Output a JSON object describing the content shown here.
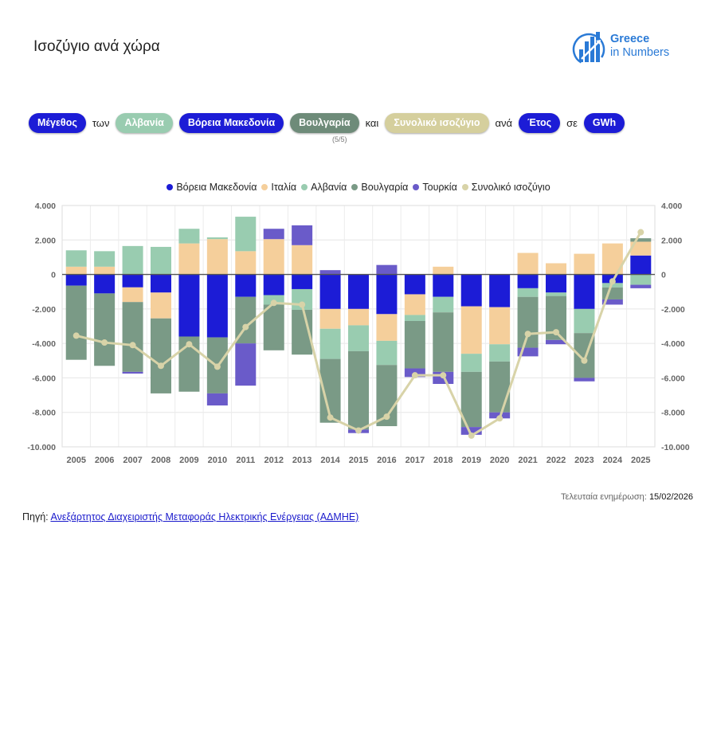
{
  "header": {
    "title": "Ισοζύγιο ανά χώρα",
    "logo_line1": "Greece",
    "logo_line2": "in Numbers"
  },
  "filters": {
    "measure": "Μέγεθος",
    "word_of": "των",
    "country1": "Αλβανία",
    "country2": "Βόρεια Μακεδονία",
    "country3": "Βουλγαρία",
    "word_and": "και",
    "total": "Συνολικό ισοζύγιο",
    "word_per": "ανά",
    "period": "Έτος",
    "word_in": "σε",
    "unit": "GWh",
    "pager": "(5/5)"
  },
  "colors": {
    "north_macedonia": "#1c1cd6",
    "italy": "#f5cf9b",
    "albania": "#99ccb0",
    "bulgaria": "#7a9a86",
    "turkey": "#6a5bc9",
    "total": "#d8d3a8",
    "pill_blue": "#1c1cd6",
    "pill_green_light": "#99ccb0",
    "pill_green_dark": "#6e8b79",
    "pill_sand": "#d5cf9d"
  },
  "chart_data": {
    "type": "bar",
    "stacked": true,
    "categories": [
      "2005",
      "2006",
      "2007",
      "2008",
      "2009",
      "2010",
      "2011",
      "2012",
      "2013",
      "2014",
      "2015",
      "2016",
      "2017",
      "2018",
      "2019",
      "2020",
      "2021",
      "2022",
      "2023",
      "2024",
      "2025"
    ],
    "ylim": [
      -10000,
      4000
    ],
    "yticks": [
      "-10.000",
      "-8.000",
      "-6.000",
      "-4.000",
      "-2.000",
      "0",
      "2.000",
      "4.000"
    ],
    "grid": true,
    "legend_position": "top",
    "series": [
      {
        "name": "Βόρεια Μακεδονία",
        "type": "bar",
        "color": "#1c1cd6",
        "values": [
          -650,
          -1100,
          -750,
          -1050,
          -3600,
          -3650,
          -1300,
          -1200,
          -850,
          -2000,
          -2000,
          -2300,
          -1150,
          -1300,
          -1850,
          -1900,
          -800,
          -1050,
          -2000,
          -500,
          1100
        ]
      },
      {
        "name": "Ιταλία",
        "type": "bar",
        "color": "#f5cf9b",
        "values": [
          450,
          450,
          -850,
          -1500,
          1800,
          2050,
          1350,
          2050,
          1700,
          -1150,
          -950,
          -1550,
          -1200,
          450,
          -2750,
          -2150,
          1250,
          650,
          1200,
          1800,
          800
        ]
      },
      {
        "name": "Αλβανία",
        "type": "bar",
        "color": "#99ccb0",
        "values": [
          950,
          900,
          1650,
          1600,
          850,
          100,
          2000,
          -550,
          -1200,
          -1750,
          -1500,
          -1400,
          -350,
          -900,
          -1050,
          -1000,
          -500,
          -200,
          -1400,
          -250,
          -600
        ]
      },
      {
        "name": "Βουλγαρία",
        "type": "bar",
        "color": "#7a9a86",
        "values": [
          -4300,
          -4200,
          -4050,
          -4350,
          -3200,
          -3250,
          -2700,
          -2650,
          -2600,
          -3700,
          -4550,
          -3550,
          -2750,
          -3450,
          -3200,
          -2950,
          -2950,
          -2550,
          -2600,
          -700,
          200
        ]
      },
      {
        "name": "Τουρκία",
        "type": "bar",
        "color": "#6a5bc9",
        "values": [
          0,
          0,
          -100,
          0,
          0,
          -700,
          -2450,
          600,
          1150,
          250,
          -200,
          550,
          -500,
          -700,
          -450,
          -350,
          -500,
          -250,
          -200,
          -300,
          -200
        ]
      },
      {
        "name": "Συνολικό ισοζύγιο",
        "type": "line",
        "color": "#d8d3a8",
        "values": [
          -3550,
          -3950,
          -4100,
          -5300,
          -4050,
          -5350,
          -3050,
          -1650,
          -1750,
          -8300,
          -9050,
          -8250,
          -5850,
          -5850,
          -9350,
          -8350,
          -3450,
          -3350,
          -5000,
          -400,
          2450
        ]
      }
    ]
  },
  "footer": {
    "updated_label": "Τελευταία ενημέρωση:",
    "updated_date": "15/02/2026",
    "source_label": "Πηγή:",
    "source_link": "Ανεξάρτητος Διαχειριστής Μεταφοράς Ηλεκτρικής Ενέργειας (ΑΔΜΗΕ)"
  }
}
